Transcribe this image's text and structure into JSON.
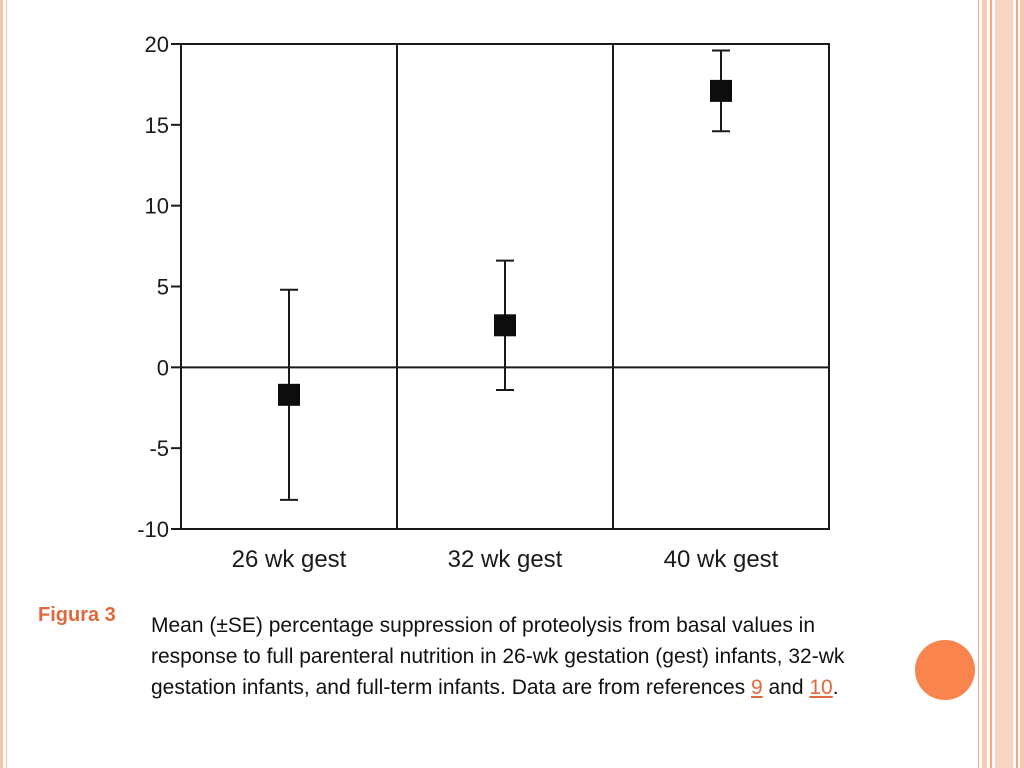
{
  "chart_data": {
    "type": "scatter",
    "categories": [
      "26 wk gest",
      "32 wk gest",
      "40 wk gest"
    ],
    "values": [
      -1.7,
      2.6,
      17.1
    ],
    "error_low": [
      -8.2,
      -1.4,
      14.6
    ],
    "error_high": [
      4.8,
      6.6,
      19.6
    ],
    "ylim": [
      -10,
      20
    ],
    "yticks": [
      20,
      15,
      10,
      5,
      0,
      -5,
      -10
    ],
    "ytick_labels": [
      "20",
      "15",
      "10",
      "5",
      "0",
      "-5",
      "-10"
    ],
    "zero_line": true
  },
  "caption": {
    "figure_label": "Figura 3",
    "text_part1": "Mean (±SE) percentage suppression of proteolysis from basal values in response to full parenteral nutrition in 26-wk gestation (gest) infants, 32-wk gestation infants, and full-term infants. Data are from references ",
    "ref1": "9",
    "and_text": " and ",
    "ref2": "10",
    "end_text": "."
  },
  "theme": {
    "accent": "#e0683a",
    "dot_color": "#f9844e"
  }
}
